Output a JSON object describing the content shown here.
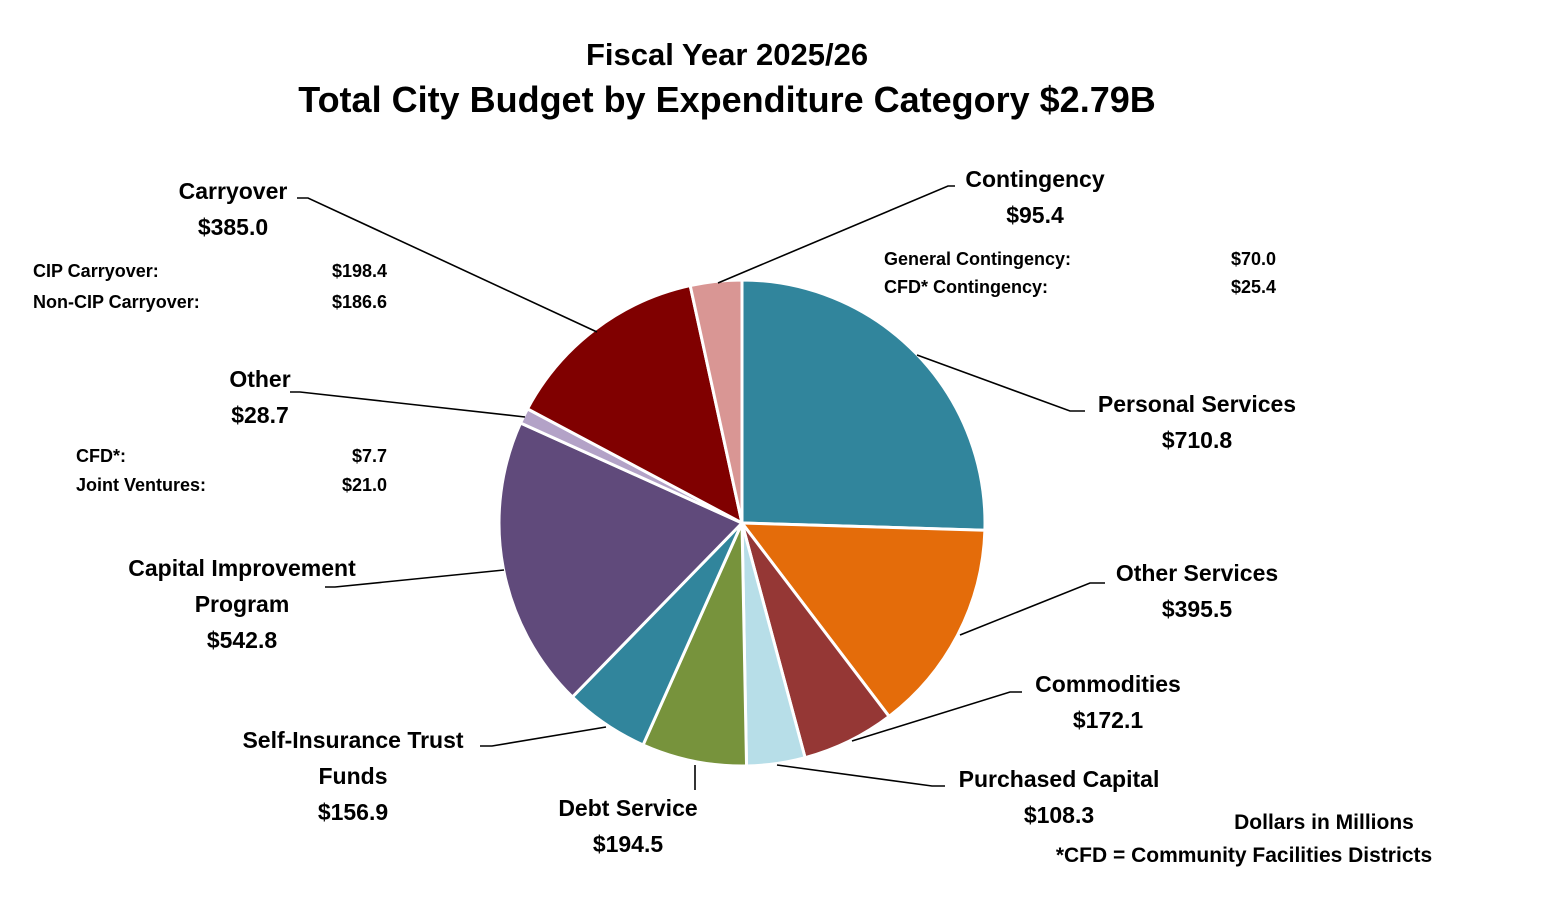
{
  "chart_data": {
    "type": "pie",
    "title": "Fiscal Year 2025/26",
    "subtitle": "Total City Budget by Expenditure Category $2.79B",
    "units_note": "Dollars in Millions",
    "footnote": "*CFD = Community Facilities Districts",
    "start": "12 o'clock, clockwise",
    "slices": [
      {
        "label": "Personal Services",
        "value": 710.8,
        "color": "#31859C"
      },
      {
        "label": "Other Services",
        "value": 395.5,
        "color": "#E46C0A"
      },
      {
        "label": "Commodities",
        "value": 172.1,
        "color": "#953735"
      },
      {
        "label": "Purchased Capital",
        "value": 108.3,
        "color": "#B7DEE8"
      },
      {
        "label": "Debt Service",
        "value": 194.5,
        "color": "#77933C"
      },
      {
        "label": "Self-Insurance Trust Funds",
        "value": 156.9,
        "color": "#31859C"
      },
      {
        "label": "Capital Improvement Program",
        "value": 542.8,
        "color": "#604A7B"
      },
      {
        "label": "Other",
        "value": 28.7,
        "color": "#B3A2C7"
      },
      {
        "label": "Carryover",
        "value": 385.0,
        "color": "#800000"
      },
      {
        "label": "Contingency",
        "value": 95.4,
        "color": "#D99694"
      }
    ],
    "breakdowns": {
      "Contingency": [
        {
          "label": "General Contingency:",
          "value": "$70.0"
        },
        {
          "label": "CFD* Contingency:",
          "value": "$25.4"
        }
      ],
      "Carryover": [
        {
          "label": "CIP Carryover:",
          "value": "$198.4"
        },
        {
          "label": "Non-CIP Carryover:",
          "value": "$186.6"
        }
      ],
      "Other": [
        {
          "label": "CFD*:",
          "value": "$7.7"
        },
        {
          "label": "Joint Ventures:",
          "value": "$21.0"
        }
      ]
    }
  }
}
